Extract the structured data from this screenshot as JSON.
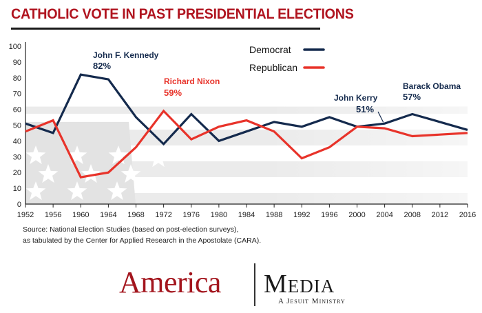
{
  "title": "CATHOLIC VOTE IN PAST PRESIDENTIAL ELECTIONS",
  "source_lines": [
    "Source: National Election Studies (based on post-election surveys),",
    "as tabulated by the Center for Applied Research in the Apostolate (CARA)."
  ],
  "logo": {
    "america": "America",
    "media": "Media",
    "tagline": "A Jesuit Ministry"
  },
  "colors": {
    "democrat": "#142a4d",
    "republican": "#e8332a",
    "title": "#b0141f"
  },
  "chart_data": {
    "type": "line",
    "title": "CATHOLIC VOTE IN PAST PRESIDENTIAL ELECTIONS",
    "x": [
      1952,
      1956,
      1960,
      1964,
      1968,
      1972,
      1976,
      1980,
      1984,
      1988,
      1992,
      1996,
      2000,
      2004,
      2008,
      2012,
      2016
    ],
    "xlabel": "",
    "ylabel": "",
    "ylim": [
      0,
      100
    ],
    "yticks": [
      0,
      10,
      20,
      30,
      40,
      50,
      60,
      70,
      80,
      90,
      100
    ],
    "grid": false,
    "legend_position": "top-center",
    "series": [
      {
        "name": "Democrat",
        "color": "#142a4d",
        "values": [
          51,
          45,
          82,
          79,
          55,
          38,
          57,
          40,
          46,
          52,
          49,
          55,
          49,
          51,
          57,
          52,
          47
        ]
      },
      {
        "name": "Republican",
        "color": "#e8332a",
        "values": [
          46,
          53,
          17,
          20,
          36,
          59,
          41,
          49,
          53,
          46,
          29,
          36,
          49,
          48,
          43,
          44,
          45
        ]
      }
    ],
    "annotations": [
      {
        "name": "John F. Kennedy",
        "value": "82%",
        "series": "Democrat",
        "year": 1960
      },
      {
        "name": "Richard Nixon",
        "value": "59%",
        "series": "Republican",
        "year": 1972
      },
      {
        "name": "John Kerry",
        "value": "51%",
        "series": "Democrat",
        "year": 2004
      },
      {
        "name": "Barack Obama",
        "value": "57%",
        "series": "Democrat",
        "year": 2008
      }
    ]
  }
}
